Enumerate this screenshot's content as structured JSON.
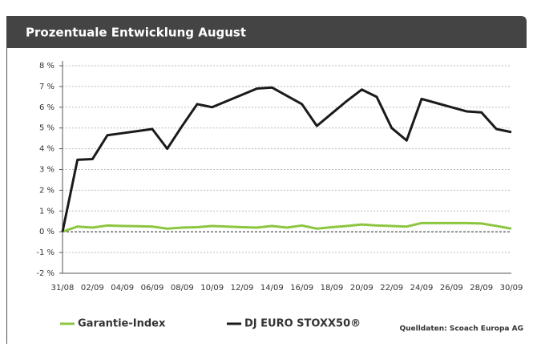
{
  "chart_data": {
    "type": "line",
    "title": "Prozentuale Entwicklung August",
    "source": "Quelldaten: Scoach Europa AG",
    "categories": [
      "31/08",
      null,
      "02/09",
      null,
      "04/09",
      null,
      "06/09",
      null,
      "08/09",
      null,
      "10/09",
      null,
      "12/09",
      null,
      "14/09",
      null,
      "16/09",
      null,
      "18/09",
      null,
      "20/09",
      null,
      "22/09",
      null,
      "24/09",
      null,
      "26/09",
      null,
      "28/09",
      null,
      "30/09"
    ],
    "series": [
      {
        "name": "Garantie-Index",
        "color": "#8cc63f",
        "values": [
          0,
          0.25,
          0.2,
          0.3,
          0.28,
          0.27,
          0.25,
          0.15,
          0.2,
          0.22,
          0.28,
          0.25,
          0.22,
          0.2,
          0.28,
          0.2,
          0.3,
          0.15,
          0.22,
          0.28,
          0.35,
          0.3,
          0.28,
          0.25,
          0.42,
          0.42,
          0.42,
          0.42,
          0.4,
          0.28,
          0.15
        ]
      },
      {
        "name": "DJ EURO STOXX50®",
        "color": "#1a1a1a",
        "values": [
          0,
          3.47,
          3.5,
          4.65,
          4.75,
          4.85,
          4.95,
          4.0,
          5.1,
          6.15,
          6.0,
          6.3,
          6.6,
          6.9,
          6.95,
          6.55,
          6.15,
          5.1,
          5.7,
          6.3,
          6.85,
          6.5,
          5.0,
          4.4,
          6.4,
          6.2,
          6.0,
          5.8,
          5.75,
          4.95,
          4.8
        ]
      }
    ],
    "ylim": [
      -2,
      8
    ],
    "yticks": [
      {
        "value": -2,
        "label": "-2 %"
      },
      {
        "value": -1,
        "label": "-1 %"
      },
      {
        "value": 0,
        "label": "0 %"
      },
      {
        "value": 1,
        "label": "1 %"
      },
      {
        "value": 2,
        "label": "2 %"
      },
      {
        "value": 3,
        "label": "3 %"
      },
      {
        "value": 4,
        "label": "4 %"
      },
      {
        "value": 5,
        "label": "5 %"
      },
      {
        "value": 6,
        "label": "6 %"
      },
      {
        "value": 7,
        "label": "7 %"
      },
      {
        "value": 8,
        "label": "8 %"
      }
    ],
    "grid": true
  }
}
